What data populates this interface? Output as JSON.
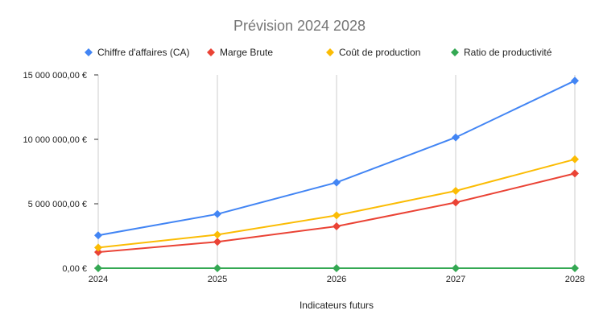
{
  "chart_data": {
    "type": "line",
    "title": "Prévision 2024 2028",
    "xlabel": "Indicateurs futurs",
    "ylabel": "",
    "categories": [
      "2024",
      "2025",
      "2026",
      "2027",
      "2028"
    ],
    "ylim": [
      0,
      15000000
    ],
    "yticks": [
      0,
      5000000,
      10000000,
      15000000
    ],
    "ytick_labels": [
      "0,00 €",
      "5 000 000,00 €",
      "10 000 000,00 €",
      "15 000 000,00 €"
    ],
    "grid": "vertical",
    "legend": "top",
    "series": [
      {
        "name": "Chiffre d'affaires (CA)",
        "color": "#4285f4",
        "values": [
          2550000,
          4200000,
          6650000,
          10150000,
          14550000
        ]
      },
      {
        "name": "Marge Brute",
        "color": "#ea4335",
        "values": [
          1250000,
          2050000,
          3250000,
          5100000,
          7350000
        ]
      },
      {
        "name": "Coût de production",
        "color": "#fbbc04",
        "values": [
          1600000,
          2600000,
          4100000,
          6000000,
          8450000
        ]
      },
      {
        "name": "Ratio de productivité",
        "color": "#34a853",
        "values": [
          0,
          0,
          0,
          0,
          0
        ]
      }
    ]
  }
}
